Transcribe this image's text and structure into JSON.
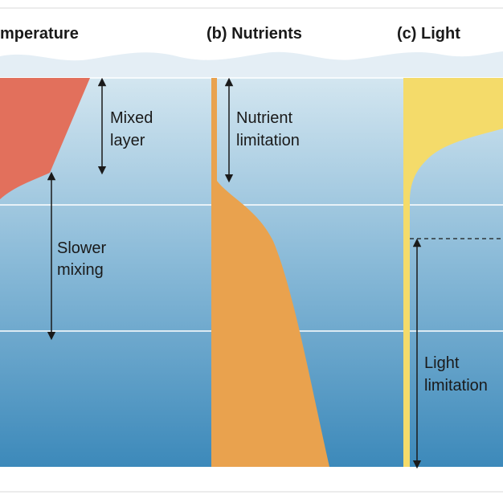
{
  "panels": [
    {
      "title": "mperature",
      "label_lines": [
        "Mixed",
        "layer"
      ],
      "label2_lines": [
        "Slower",
        "mixing"
      ]
    },
    {
      "title": "(b) Nutrients",
      "label_lines": [
        "Nutrient",
        "limitation"
      ]
    },
    {
      "title": "(c) Light",
      "label_lines": [
        "Light",
        "limitation"
      ]
    }
  ],
  "colors": {
    "temperature": "#e2705c",
    "nutrients": "#e9a24e",
    "light": "#f4db6a",
    "water_top": "#cfe3ee",
    "water_bottom": "#3f8cbc",
    "wave": "#e4eef5",
    "arrow": "#1a1a1a"
  }
}
